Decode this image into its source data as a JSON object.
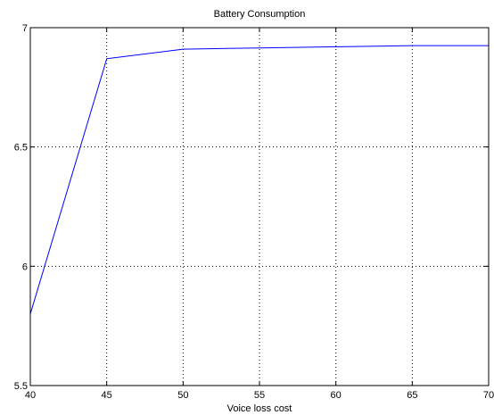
{
  "chart_data": {
    "type": "line",
    "title": "Battery Consumption",
    "xlabel": "Voice loss cost",
    "ylabel": "",
    "xlim": [
      40,
      70
    ],
    "ylim": [
      5.5,
      7
    ],
    "xticks": [
      40,
      45,
      50,
      55,
      60,
      65,
      70
    ],
    "yticks": [
      5.5,
      6,
      6.5,
      7
    ],
    "x_tick_labels": [
      "40",
      "45",
      "50",
      "55",
      "60",
      "65",
      "70"
    ],
    "y_tick_labels": [
      "5.5",
      "6",
      "6.5",
      "7"
    ],
    "grid": true,
    "series": [
      {
        "color": "#0000ff",
        "x": [
          40,
          45,
          50,
          55,
          60,
          65,
          70
        ],
        "y": [
          5.8,
          6.87,
          6.91,
          6.915,
          6.92,
          6.925,
          6.925
        ]
      }
    ]
  }
}
